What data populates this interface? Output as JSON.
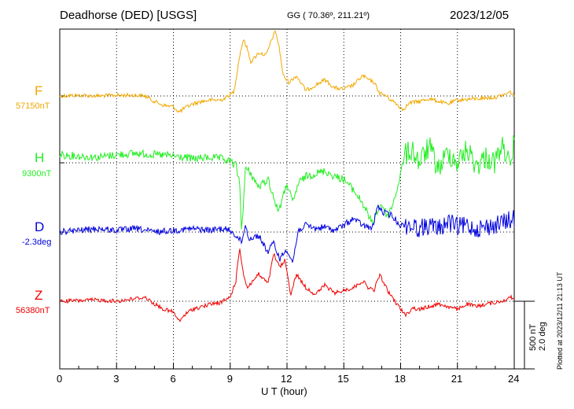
{
  "header": {
    "station": "Deadhorse (DED)  [USGS]",
    "coords": "GG ( 70.36º, 211.21º)",
    "date": "2023/12/05"
  },
  "side": {
    "plotted": "Plotted at 2023/12/11 21:13 UT",
    "scale_nt": "500 nT",
    "scale_deg": "2.0 deg"
  },
  "colors": {
    "F": "#f0a800",
    "H": "#22ee22",
    "D": "#0000dd",
    "Z": "#ee0000"
  },
  "chart_data": {
    "type": "line",
    "xlabel": "U T (hour)",
    "xlim": [
      0,
      24
    ],
    "xticks": [
      "0",
      "3",
      "6",
      "9",
      "12",
      "15",
      "18",
      "21",
      "24"
    ],
    "grid": true,
    "scale": {
      "nT_per_bar": 500,
      "deg_per_bar": 2.0
    },
    "series": [
      {
        "name": "F",
        "baseline_label": "57150nT",
        "units": "nT",
        "baseline": 57150,
        "x": [
          0,
          1,
          2,
          3,
          4,
          4.5,
          5,
          5.5,
          6,
          6.3,
          6.6,
          7,
          7.5,
          8,
          8.5,
          8.8,
          9.2,
          9.5,
          9.7,
          9.9,
          10.1,
          10.5,
          10.9,
          11.2,
          11.4,
          11.6,
          11.8,
          12.1,
          12.5,
          13.0,
          13.5,
          14.0,
          14.5,
          15.0,
          15.5,
          16.0,
          16.3,
          16.6,
          16.9,
          17.2,
          17.5,
          17.8,
          18.1,
          18.5,
          19.0,
          19.5,
          20.0,
          20.5,
          21,
          22,
          23,
          23.5,
          23.8,
          24
        ],
        "y": [
          0,
          5,
          0,
          5,
          5,
          0,
          -40,
          -70,
          -80,
          -120,
          -90,
          -60,
          -40,
          -30,
          -30,
          -10,
          30,
          300,
          420,
          350,
          250,
          320,
          300,
          420,
          480,
          350,
          150,
          100,
          150,
          40,
          80,
          120,
          60,
          50,
          80,
          150,
          120,
          100,
          20,
          5,
          -30,
          -60,
          -100,
          -50,
          -40,
          -20,
          -40,
          -60,
          -30,
          -20,
          -10,
          10,
          30,
          0
        ]
      },
      {
        "name": "H",
        "baseline_label": "9300nT",
        "units": "nT",
        "baseline": 9300,
        "x": [
          0,
          1,
          2,
          3,
          4,
          5,
          6,
          7,
          8,
          8.5,
          9.0,
          9.3,
          9.5,
          9.6,
          9.7,
          9.8,
          10.0,
          10.5,
          11.0,
          11.5,
          11.7,
          12.0,
          12.3,
          12.6,
          13.0,
          13.5,
          14.0,
          14.5,
          15.0,
          15.5,
          16.0,
          16.5,
          16.7,
          17.0,
          17.3,
          17.6,
          17.9,
          18.2,
          18.6,
          19.0,
          19.5,
          20.0,
          20.5,
          21,
          21.5,
          22,
          22.5,
          23,
          23.3,
          23.6,
          23.8,
          24
        ],
        "y": [
          60,
          50,
          40,
          60,
          70,
          60,
          50,
          30,
          40,
          30,
          10,
          -20,
          -150,
          -500,
          -300,
          -50,
          -60,
          -180,
          -120,
          -350,
          -300,
          -150,
          -300,
          -150,
          -100,
          -80,
          -60,
          -100,
          -120,
          -200,
          -300,
          -450,
          -380,
          -300,
          -400,
          -300,
          -150,
          50,
          100,
          0,
          120,
          -50,
          80,
          0,
          100,
          -20,
          40,
          0,
          120,
          80,
          -100,
          200
        ]
      },
      {
        "name": "D",
        "baseline_label": "-2.3deg",
        "units": "deg",
        "baseline": -2.3,
        "x": [
          0,
          1,
          2,
          3,
          4,
          5,
          6,
          7,
          8,
          8.5,
          9.0,
          9.3,
          9.6,
          9.8,
          10.0,
          10.5,
          11.0,
          11.3,
          11.6,
          12.0,
          12.3,
          12.6,
          13.0,
          13.5,
          14.0,
          14.5,
          15.0,
          15.5,
          16.0,
          16.5,
          16.8,
          17.0,
          17.5,
          18.0,
          18.5,
          19.0,
          19.5,
          20.0,
          20.5,
          21,
          21.5,
          22,
          22.5,
          23,
          23.5,
          24
        ],
        "y": [
          0,
          0.05,
          0.1,
          0.05,
          0.1,
          0,
          0.05,
          0.1,
          0.05,
          0.1,
          0.05,
          -0.1,
          -0.3,
          0.2,
          -0.2,
          -0.1,
          -0.6,
          -0.3,
          -0.8,
          -0.5,
          -0.9,
          0.05,
          0.2,
          0.1,
          0.15,
          0.05,
          0.2,
          0.4,
          0.2,
          0.1,
          0.8,
          0.6,
          0.5,
          0.2,
          0.2,
          0.1,
          0.2,
          0.1,
          0.3,
          0.15,
          0.2,
          0.1,
          0.15,
          0.2,
          0.3,
          0.4
        ]
      },
      {
        "name": "Z",
        "baseline_label": "56380nT",
        "units": "nT",
        "baseline": 56380,
        "x": [
          0,
          1,
          2,
          3,
          4,
          4.5,
          5,
          5.5,
          6,
          6.3,
          6.6,
          7,
          7.5,
          8,
          8.5,
          9.0,
          9.3,
          9.5,
          9.7,
          9.9,
          10.2,
          10.5,
          11.0,
          11.3,
          11.6,
          11.9,
          12.2,
          12.5,
          13.0,
          13.5,
          14.0,
          14.5,
          15.0,
          15.5,
          16.0,
          16.3,
          16.6,
          16.9,
          17.3,
          17.6,
          18.0,
          18.3,
          18.6,
          19.0,
          19.5,
          20.0,
          20.5,
          21,
          21.5,
          22,
          22.5,
          23,
          23.5,
          23.8,
          24
        ],
        "y": [
          0,
          5,
          10,
          0,
          20,
          30,
          -20,
          -60,
          -80,
          -150,
          -100,
          -60,
          -40,
          -20,
          -10,
          30,
          150,
          400,
          200,
          100,
          150,
          200,
          130,
          350,
          250,
          300,
          50,
          200,
          100,
          50,
          120,
          60,
          80,
          100,
          150,
          100,
          80,
          200,
          80,
          20,
          -60,
          -100,
          -50,
          -60,
          -40,
          -20,
          -40,
          -60,
          -20,
          -40,
          -20,
          -10,
          10,
          30,
          20
        ]
      }
    ]
  }
}
